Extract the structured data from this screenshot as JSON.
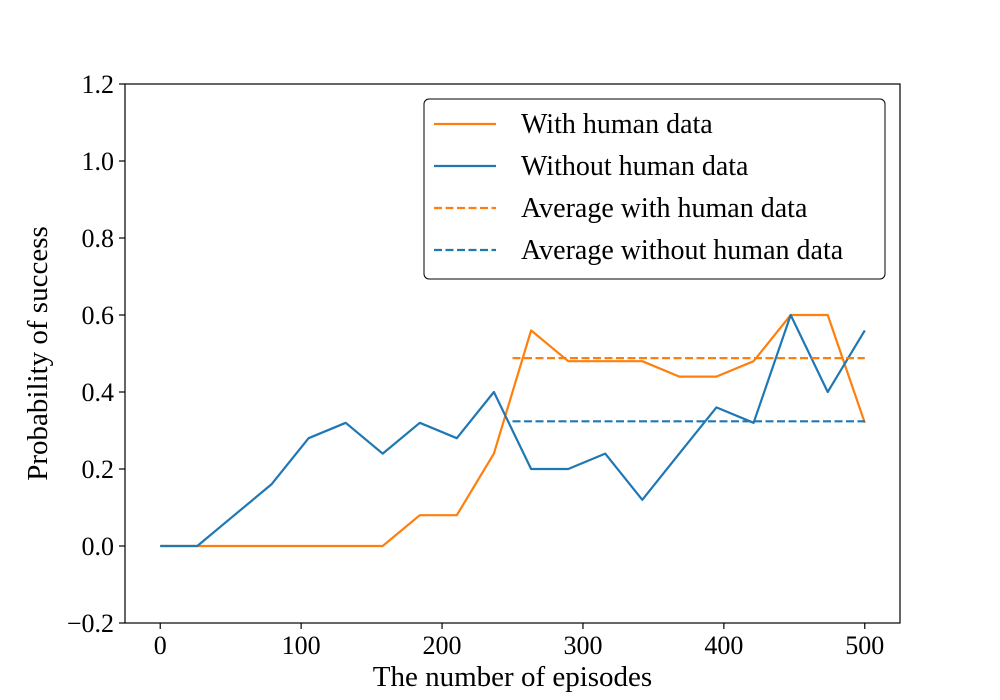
{
  "chart_data": {
    "type": "line",
    "xlabel": "The number of episodes",
    "ylabel": "Probability of success",
    "xlim": [
      -25,
      525
    ],
    "ylim": [
      -0.2,
      1.2
    ],
    "x_ticks": [
      0,
      100,
      200,
      300,
      400,
      500
    ],
    "x_tick_labels": [
      "0",
      "100",
      "200",
      "300",
      "400",
      "500"
    ],
    "y_ticks": [
      -0.2,
      0.0,
      0.2,
      0.4,
      0.6,
      0.8,
      1.0,
      1.2
    ],
    "y_tick_labels": [
      "−0.2",
      "0.0",
      "0.2",
      "0.4",
      "0.6",
      "0.8",
      "1.0",
      "1.2"
    ],
    "grid": false,
    "legend_position": "top-right",
    "series": [
      {
        "name": "With human data",
        "color": "#ff7f0e",
        "style": "solid",
        "x": [
          0,
          26.3,
          52.6,
          78.9,
          105.3,
          131.6,
          157.9,
          184.2,
          210.5,
          236.8,
          263.2,
          289.5,
          315.8,
          342.1,
          368.4,
          394.7,
          421.1,
          447.4,
          473.7,
          500
        ],
        "y": [
          0,
          0,
          0,
          0,
          0,
          0,
          0,
          0.08,
          0.08,
          0.24,
          0.56,
          0.48,
          0.48,
          0.48,
          0.44,
          0.44,
          0.48,
          0.6,
          0.6,
          0.32
        ]
      },
      {
        "name": "Without human data",
        "color": "#1f77b4",
        "style": "solid",
        "x": [
          0,
          26.3,
          52.6,
          78.9,
          105.3,
          131.6,
          157.9,
          184.2,
          210.5,
          236.8,
          263.2,
          289.5,
          315.8,
          342.1,
          368.4,
          394.7,
          421.1,
          447.4,
          473.7,
          500
        ],
        "y": [
          0,
          0,
          0.08,
          0.16,
          0.28,
          0.32,
          0.24,
          0.32,
          0.28,
          0.4,
          0.2,
          0.2,
          0.24,
          0.12,
          0.24,
          0.36,
          0.32,
          0.6,
          0.4,
          0.56
        ]
      },
      {
        "name": "Average with human data",
        "color": "#ff7f0e",
        "style": "dashed",
        "x": [
          250,
          500
        ],
        "y": [
          0.488,
          0.488
        ]
      },
      {
        "name": "Average without human data",
        "color": "#1f77b4",
        "style": "dashed",
        "x": [
          250,
          500
        ],
        "y": [
          0.324,
          0.324
        ]
      }
    ]
  }
}
